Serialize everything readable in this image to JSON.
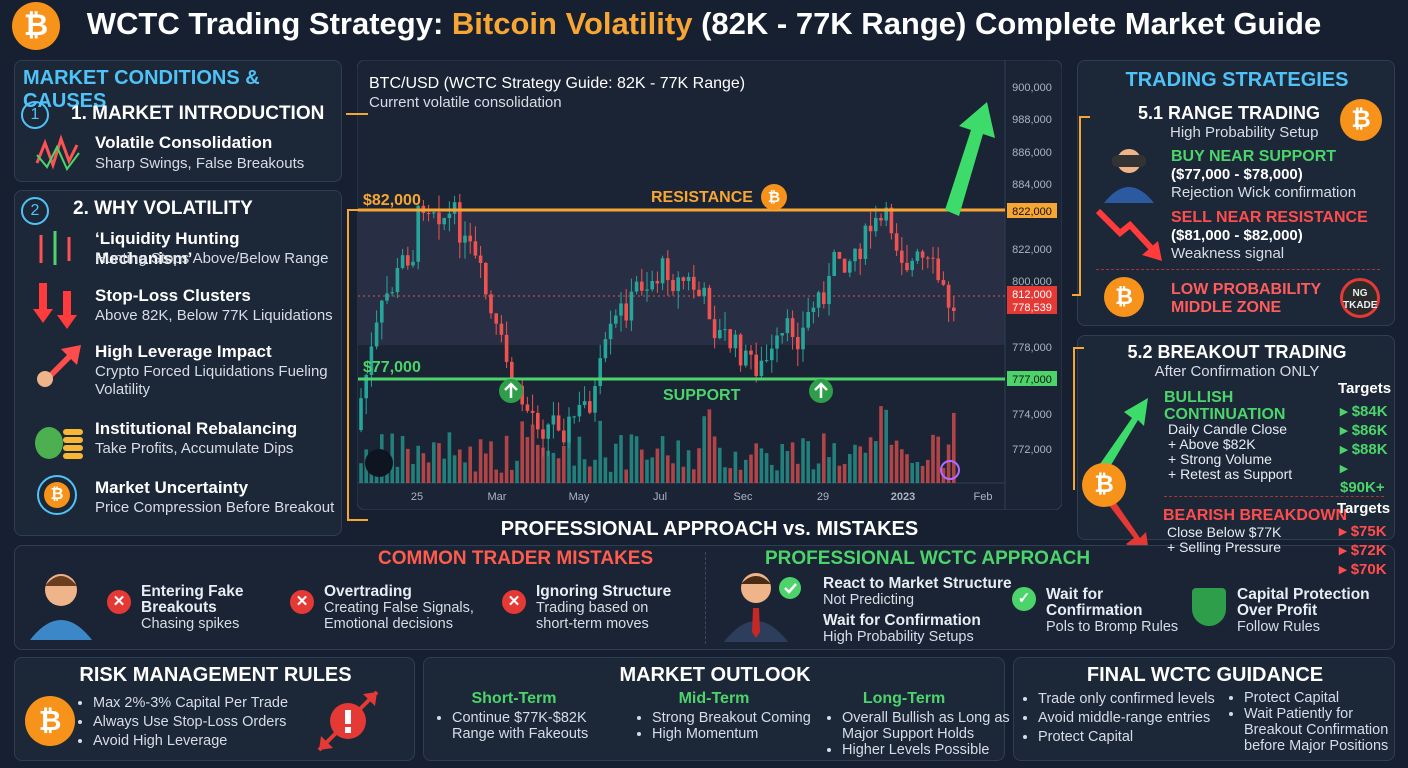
{
  "btc_symbol": "₿",
  "header": {
    "pre": "WCTC Trading Strategy: ",
    "highlight": "Bitcoin Volatility",
    "post": " (82K - 77K Range) Complete Market Guide"
  },
  "conditions": {
    "heading": "MARKET CONDITIONS & CAUSES",
    "section1": {
      "num": "1",
      "title": "1. MARKET INTRODUCTION",
      "items": [
        {
          "title": "Volatile Consolidation",
          "desc": "Sharp Swings, False Breakouts"
        }
      ]
    },
    "section2": {
      "num": "2",
      "title": "2. WHY VOLATILITY",
      "items": [
        {
          "title": "‘Liquidity Hunting Mechanism’",
          "desc": "Hunting Stops Above/Below Range"
        },
        {
          "title": "Stop-Loss Clusters",
          "desc": "Above 82K, Below 77K Liquidations"
        },
        {
          "title": "High Leverage Impact",
          "desc": "Crypto Forced Liquidations Fueling Volatility"
        },
        {
          "title": "Institutional Rebalancing",
          "desc": "Take Profits, Accumulate Dips"
        },
        {
          "title": "Market Uncertainty",
          "desc": "Price Compression Before Breakout"
        }
      ]
    }
  },
  "chart": {
    "title": "BTC/USD (WCTC Strategy Guide: 82K - 77K Range)",
    "subtitle": "Current volatile consolidation",
    "resistance_price": "$82,000",
    "support_price": "$77,000",
    "resistance": "RESISTANCE",
    "support": "SUPPORT",
    "y_labels": [
      "900,000",
      "988,000",
      "886,000",
      "884,000",
      "822,000",
      "822,000",
      "800,000",
      "812,000",
      "778,539",
      "778,000",
      "777,000",
      "774,000",
      "772,000"
    ],
    "x_labels": [
      "25",
      "Mar",
      "May",
      "Jul",
      "Sec",
      "29",
      "2023",
      "Feb"
    ],
    "footer": "PROFESSIONAL APPROACH vs. MISTAKES"
  },
  "strategies": {
    "heading": "TRADING STRATEGIES",
    "range": {
      "title": "5.1 RANGE TRADING",
      "subtitle": "High Probability Setup",
      "buy": {
        "title": "BUY NEAR SUPPORT",
        "range": "($77,000 - $78,000)",
        "desc": "Rejection Wick confirmation"
      },
      "sell": {
        "title": "SELL NEAR RESISTANCE",
        "range": "($81,000 - $82,000)",
        "desc": "Weakness signal"
      },
      "low": [
        "LOW PROBABILITY",
        "MIDDLE ZONE"
      ],
      "no_trade": [
        "NG",
        "TKADE"
      ]
    },
    "breakout": {
      "title": "5.2 BREAKOUT TRADING",
      "subtitle": "After Confirmation ONLY",
      "bullish": {
        "title": [
          "BULLISH",
          "CONTINUATION"
        ],
        "lines": [
          "Daily Candle Close",
          "+ Above $82K",
          "+ Strong Volume",
          "+ Retest as Support"
        ],
        "targets_label": "Targets",
        "targets": [
          "$84K",
          "$86K",
          "$88K",
          "$90K+"
        ]
      },
      "bearish": {
        "title": "BEARISH BREAKDOWN",
        "lines": [
          "Close Below $77K",
          "+ Selling Pressure"
        ],
        "targets_label": "Targets",
        "targets": [
          "$75K",
          "$72K",
          "$70K"
        ]
      }
    }
  },
  "mistakes": {
    "heading": "COMMON TRADER MISTAKES",
    "items": [
      {
        "title": [
          "Entering Fake",
          "Breakouts"
        ],
        "desc": [
          "Chasing spikes"
        ]
      },
      {
        "title": [
          "Overtrading"
        ],
        "desc": [
          "Creating False Signals,",
          "Emotional decisions"
        ]
      },
      {
        "title": [
          "Ignoring Structure"
        ],
        "desc": [
          "Trading based on",
          "short-term moves"
        ]
      }
    ]
  },
  "approach": {
    "heading": "PROFESSIONAL WCTC APPROACH",
    "items": [
      {
        "title": [
          "React to Market Structure"
        ],
        "desc": [
          "Not Predicting"
        ]
      },
      {
        "title": [
          "Wait for Confirmation"
        ],
        "desc": [
          "High Probability Setups"
        ]
      },
      {
        "title": [
          "Wait for",
          "Confirmation"
        ],
        "desc": [
          "Pols to Bromp Rules"
        ]
      },
      {
        "title": [
          "Capital Protection",
          "Over Profit"
        ],
        "desc": [
          "Follow Rules"
        ]
      }
    ]
  },
  "risk": {
    "heading": "RISK MANAGEMENT RULES",
    "items": [
      "Max 2%-3% Capital Per Trade",
      "Always Use Stop-Loss Orders",
      "Avoid High Leverage"
    ]
  },
  "outlook": {
    "heading": "MARKET OUTLOOK",
    "columns": [
      {
        "title": "Short-Term",
        "items": [
          "Continue $77K-$82K Range with Fakeouts"
        ]
      },
      {
        "title": "Mid-Term",
        "items": [
          "Strong Breakout Coming",
          "High Momentum"
        ]
      },
      {
        "title": "Long-Term",
        "items": [
          "Overall Bullish as Long as Major Support Holds",
          "Higher Levels Possible"
        ]
      }
    ]
  },
  "final": {
    "heading": "FINAL WCTC GUIDANCE",
    "col1": [
      "Trade only confirmed levels",
      "Avoid middle-range entries",
      "Protect Capital"
    ],
    "col2": [
      "Protect Capital",
      "Wait Patiently for Breakout Confirmation before Major Positions"
    ]
  }
}
